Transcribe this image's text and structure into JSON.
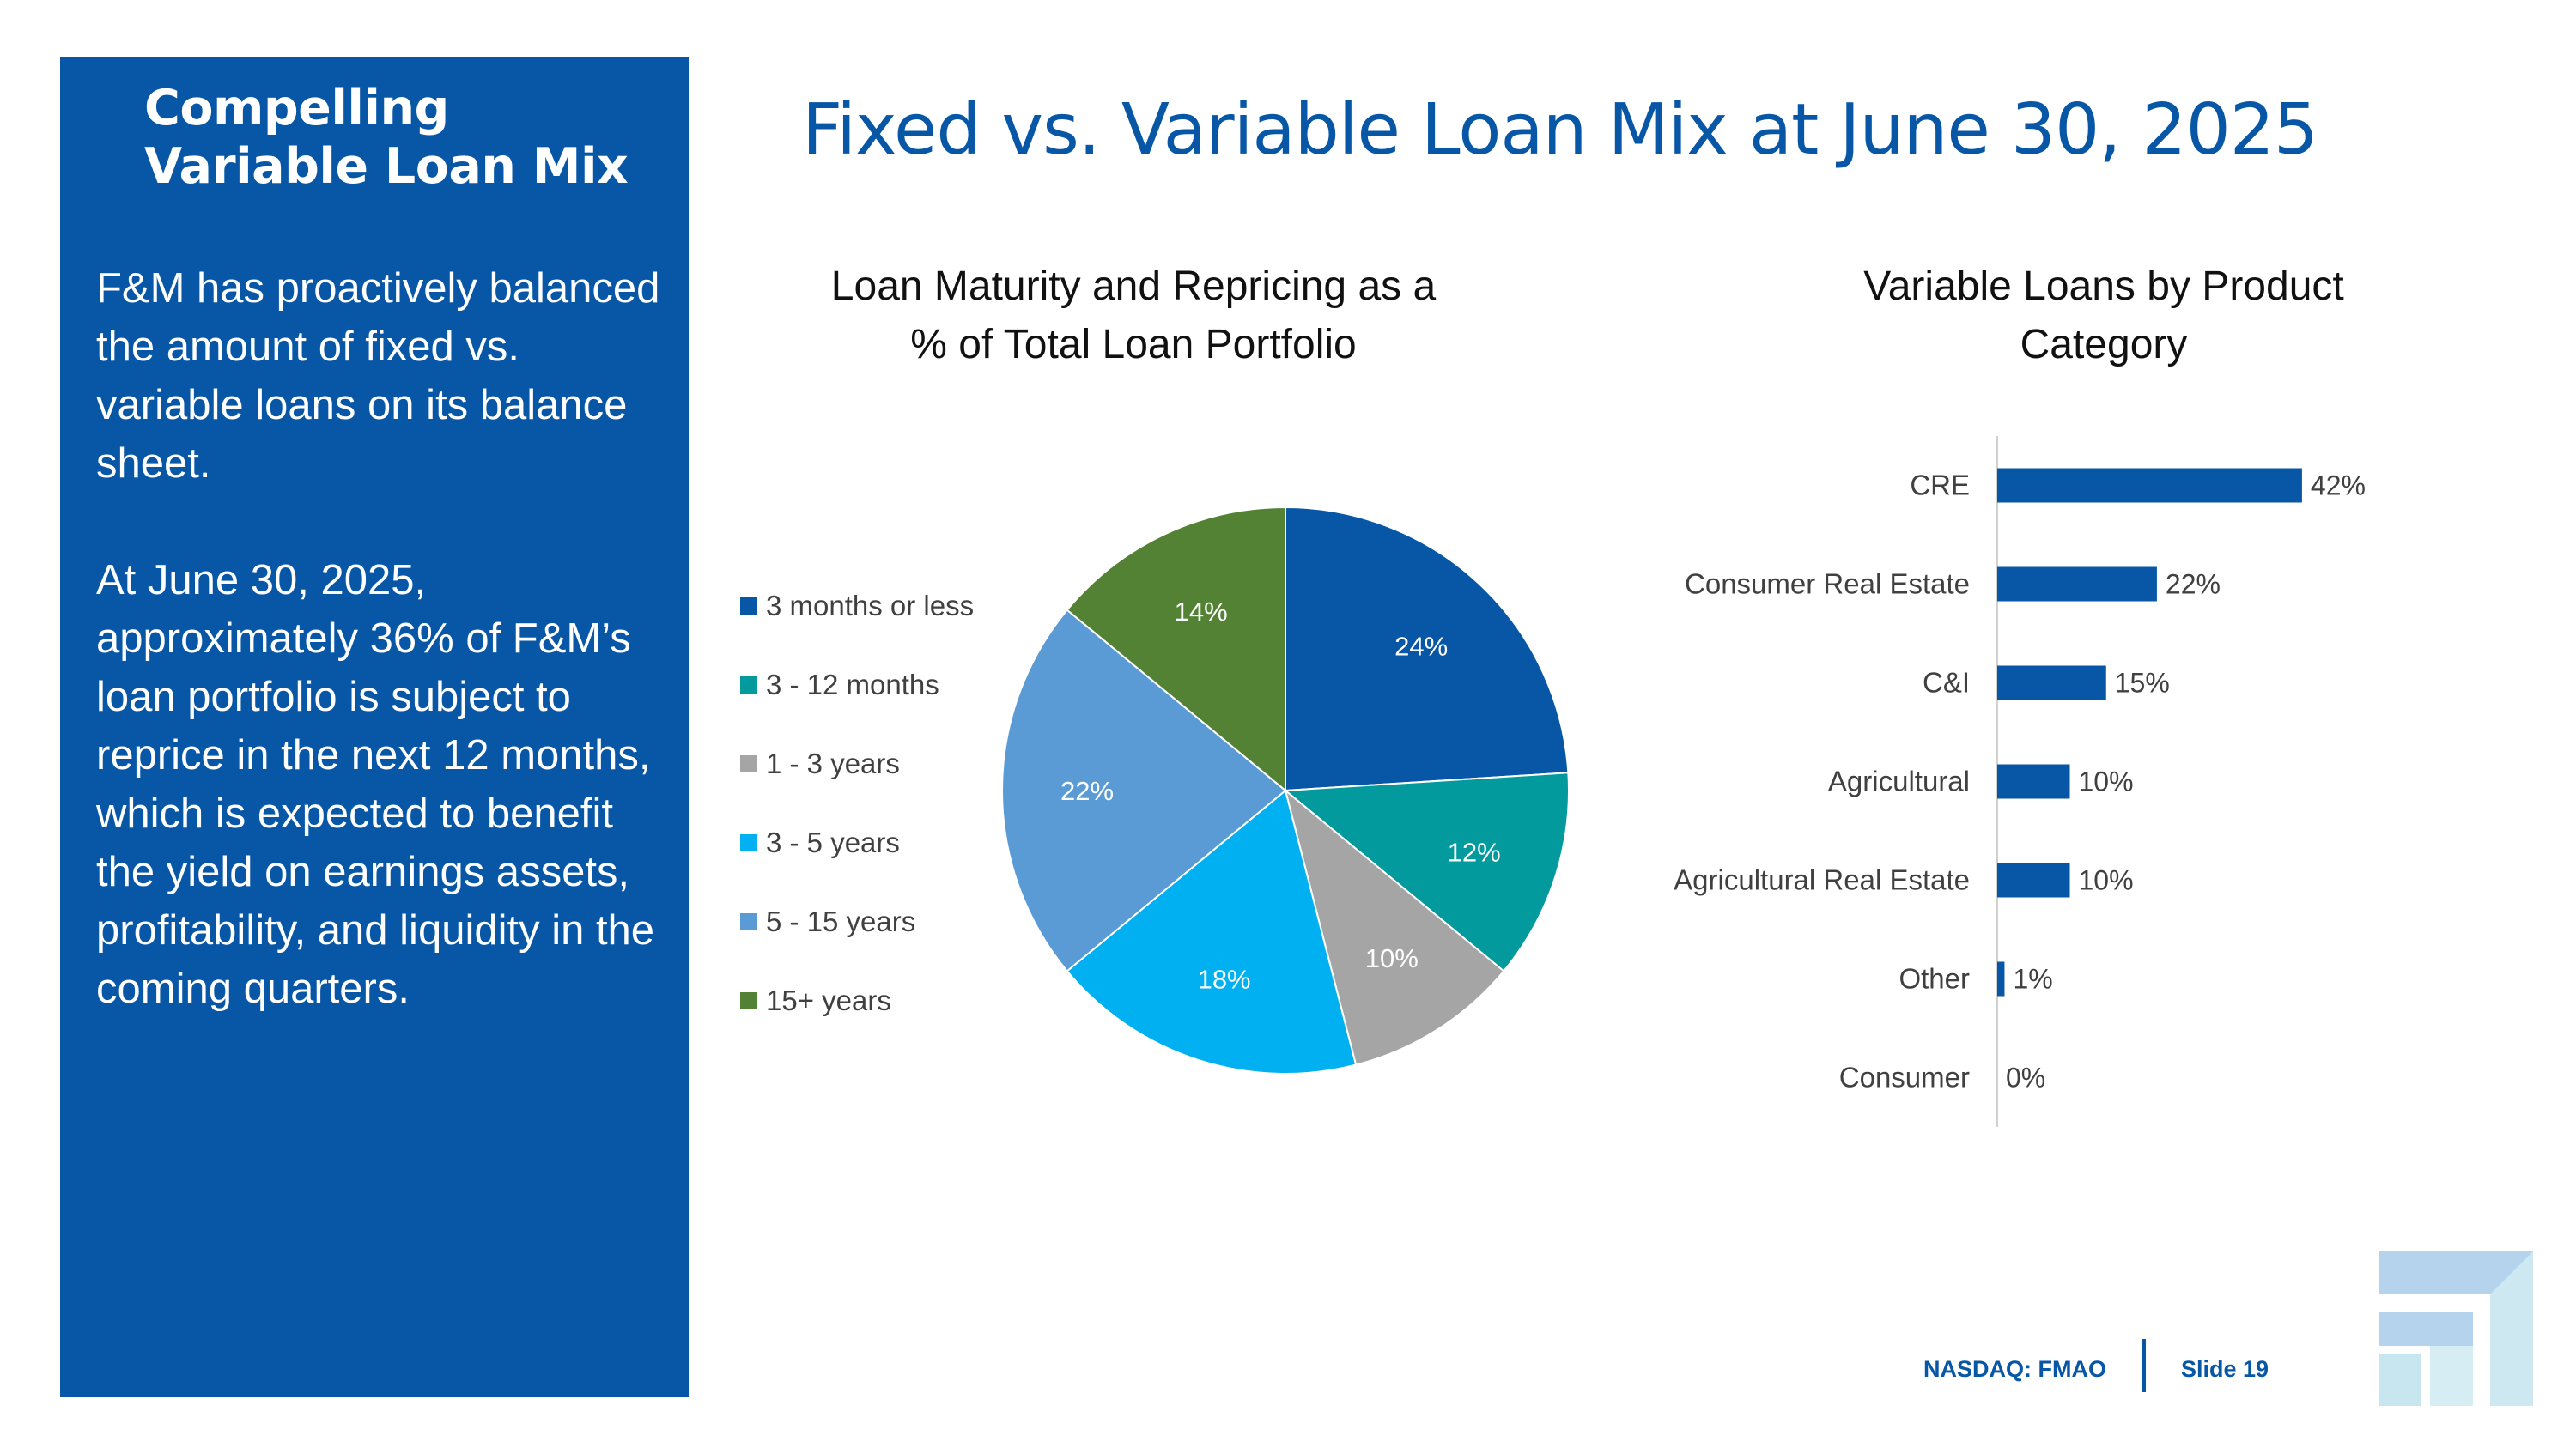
{
  "sidebar": {
    "title": "Compelling Variable Loan Mix",
    "paragraphs": [
      "F&M has proactively balanced the amount of fixed vs. variable loans on its balance sheet.",
      "At June 30, 2025, approximately 36% of F&M’s loan portfolio is subject to reprice in the next 12 months, which is expected to benefit the yield on earnings assets, profitability, and liquidity in the coming quarters."
    ]
  },
  "title": "Fixed vs. Variable Loan Mix at June 30, 2025",
  "footer": {
    "ticker": "NASDAQ: FMAO",
    "slide": "Slide 19"
  },
  "colors": {
    "brand_blue": "#0757a6",
    "logo": "light-blue-teal-arrow"
  },
  "chart_data": [
    {
      "type": "pie",
      "title": "Loan Maturity and Repricing as a % of Total Loan Portfolio",
      "legend_position": "left",
      "slices": [
        {
          "label": "3 months or less",
          "value": 24,
          "display": "24%",
          "color": "#0757a6"
        },
        {
          "label": "3 - 12 months",
          "value": 12,
          "display": "12%",
          "color": "#029a9d"
        },
        {
          "label": "1 - 3 years",
          "value": 10,
          "display": "10%",
          "color": "#a5a5a5"
        },
        {
          "label": "3 - 5 years",
          "value": 18,
          "display": "18%",
          "color": "#00b0f0"
        },
        {
          "label": "5 - 15 years",
          "value": 22,
          "display": "22%",
          "color": "#5b9bd5"
        },
        {
          "label": "15+ years",
          "value": 14,
          "display": "14%",
          "color": "#548235"
        }
      ]
    },
    {
      "type": "bar",
      "orientation": "horizontal",
      "title": "Variable Loans by Product Category",
      "categories": [
        "CRE",
        "Consumer Real Estate",
        "C&I",
        "Agricultural",
        "Agricultural Real Estate",
        "Other",
        "Consumer"
      ],
      "values": [
        42,
        22,
        15,
        10,
        10,
        1,
        0
      ],
      "value_labels": [
        "42%",
        "22%",
        "15%",
        "10%",
        "10%",
        "1%",
        "0%"
      ],
      "color": "#0757a6",
      "xlim": [
        0,
        100
      ],
      "grid": false
    }
  ]
}
